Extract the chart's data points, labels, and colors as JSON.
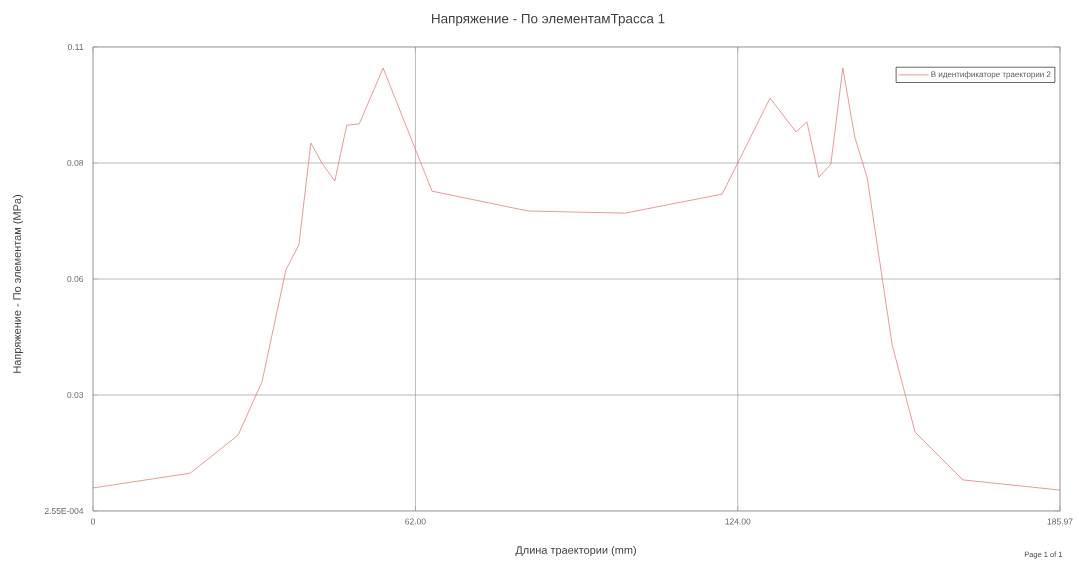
{
  "chart_data": {
    "type": "line",
    "title": "Напряжение - По элементамТрасса 1",
    "xlabel": "Длина траектории (mm)",
    "ylabel": "Напряжение - По элементам (MPa)",
    "annotations": [
      "Page 1 of 1"
    ],
    "x": [
      0,
      18.7,
      27.9,
      32.5,
      37.1,
      39.6,
      41.9,
      44.0,
      46.5,
      48.8,
      51.2,
      55.8,
      65.2,
      83.7,
      102.3,
      121.0,
      130.2,
      135.2,
      137.3,
      139.6,
      141.9,
      144.2,
      146.5,
      148.9,
      153.7,
      158.1,
      167.3,
      185.97
    ],
    "series": [
      {
        "name": "В идентификаторе траектории 2",
        "color": "#d9706a",
        "values": [
          0.0057,
          0.0092,
          0.0182,
          0.0308,
          0.0573,
          0.0632,
          0.0873,
          0.0826,
          0.0783,
          0.0915,
          0.0918,
          0.105,
          0.0759,
          0.0712,
          0.0707,
          0.0752,
          0.0979,
          0.0899,
          0.0923,
          0.0792,
          0.0823,
          0.105,
          0.0887,
          0.079,
          0.0395,
          0.0189,
          0.0076,
          0.0052
        ]
      }
    ],
    "xlim": [
      0,
      185.97
    ],
    "ylim": [
      0.000255,
      0.11
    ],
    "xticks": [
      0,
      {
        "value": 62,
        "label": "62.00"
      },
      {
        "value": 124,
        "label": "124.00"
      },
      {
        "value": 185.97,
        "label": "185.97"
      }
    ],
    "yticks": [
      {
        "value": 0.000255,
        "label": "2.55E-004"
      },
      {
        "value": 0.02769,
        "label": "0.03"
      },
      {
        "value": 0.05512,
        "label": "0.06"
      },
      {
        "value": 0.08256,
        "label": "0.08"
      },
      0.11
    ],
    "grid": true,
    "legend": "top right",
    "line_style": "solid"
  }
}
